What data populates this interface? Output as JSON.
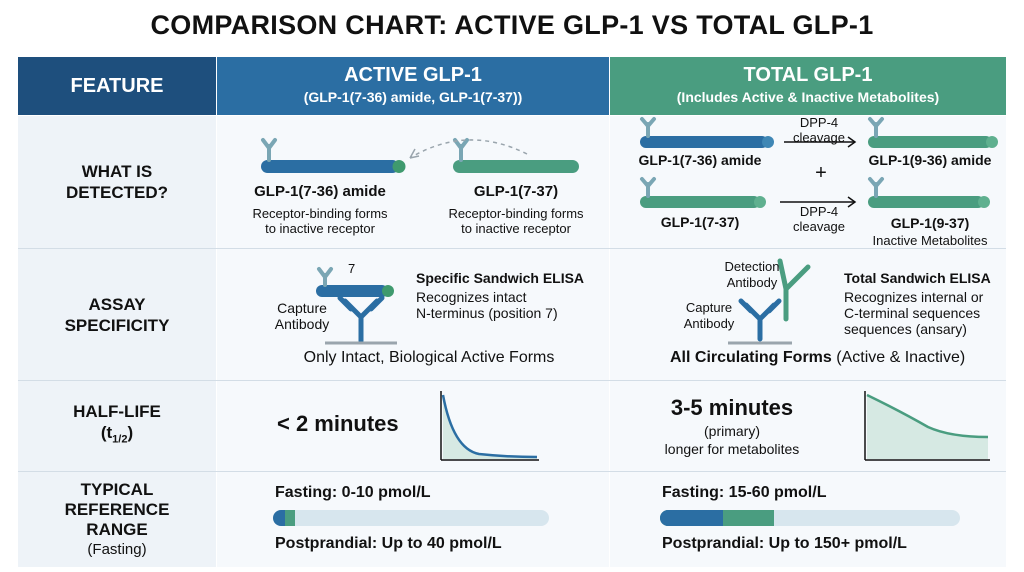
{
  "title": "COMPARISON CHART: ACTIVE GLP-1 VS TOTAL GLP-1",
  "header": {
    "feature": "FEATURE",
    "active": {
      "label": "ACTIVE GLP-1",
      "sub": "(GLP-1(7-36) amide, GLP-1(7-37))"
    },
    "total": {
      "label": "TOTAL GLP-1",
      "sub": "(Includes Active & Inactive Metabolites)"
    }
  },
  "rows": {
    "detected": {
      "label_line1": "WHAT IS",
      "label_line2": "DETECTED?",
      "active": {
        "mol1_name": "GLP-1(7-36) amide",
        "mol1_desc1": "Receptor-binding forms",
        "mol1_desc2": "to inactive receptor",
        "mol2_name": "GLP-1(7-37)",
        "mol2_desc1": "Receptor-binding forms",
        "mol2_desc2": "to inactive receptor"
      },
      "total": {
        "mol1_name": "GLP-1(7-36) amide",
        "mol2_name": "GLP-1(7-37)",
        "cleave1_a": "DPP-4",
        "cleave1_b": "cleavage",
        "plus": "+",
        "cleave2_a": "DPP-4",
        "cleave2_b": "cleavage",
        "met1_name": "GLP-1(9-36) amide",
        "met2_name": "GLP-1(9-37)",
        "met_desc": "Inactive Metabolites"
      }
    },
    "assay": {
      "label_line1": "ASSAY",
      "label_line2": "SPECIFICITY",
      "active": {
        "position": "7",
        "capture_a": "Capture",
        "capture_b": "Antibody",
        "method": "Specific Sandwich ELISA",
        "desc1": "Recognizes intact",
        "desc2": "N-terminus (position 7)",
        "summary": "Only Intact, Biological Active Forms"
      },
      "total": {
        "detection_a": "Detection",
        "detection_b": "Antibody",
        "capture_a": "Capture",
        "capture_b": "Antibody",
        "method": "Total Sandwich ELISA",
        "desc1": "Recognizes internal or",
        "desc2": "C-terminal sequences",
        "desc3": "sequences (ansary)",
        "summary_bold": "All Circulating Forms",
        "summary_rest": " (Active & Inactive)"
      }
    },
    "halflife": {
      "label_line1": "HALF-LIFE",
      "label_t": "(t",
      "label_sub": "1/2",
      "label_close": ")",
      "active": {
        "value": "< 2 minutes"
      },
      "total": {
        "value": "3-5 minutes",
        "note1": "(primary)",
        "note2": "longer for metabolites"
      }
    },
    "range": {
      "label_line1": "TYPICAL",
      "label_line2": "REFERENCE",
      "label_line3": "RANGE",
      "label_line4": "(Fasting)",
      "active": {
        "fasting": "Fasting: 0-10 pmol/L",
        "fasting_fill": 0.08,
        "postprandial": "Postprandial: Up to 40 pmol/L"
      },
      "total": {
        "fasting": "Fasting: 15-60 pmol/L",
        "fasting_fill": 0.21,
        "fasting_fill2": 0.38,
        "postprandial": "Postprandial: Up to 150+ pmol/L"
      }
    }
  },
  "colors": {
    "active": "#2b6ea3",
    "total": "#4a9d80",
    "feature": "#1e4f7d",
    "active_light": "#3f87b5",
    "total_light": "#5fb08f"
  }
}
